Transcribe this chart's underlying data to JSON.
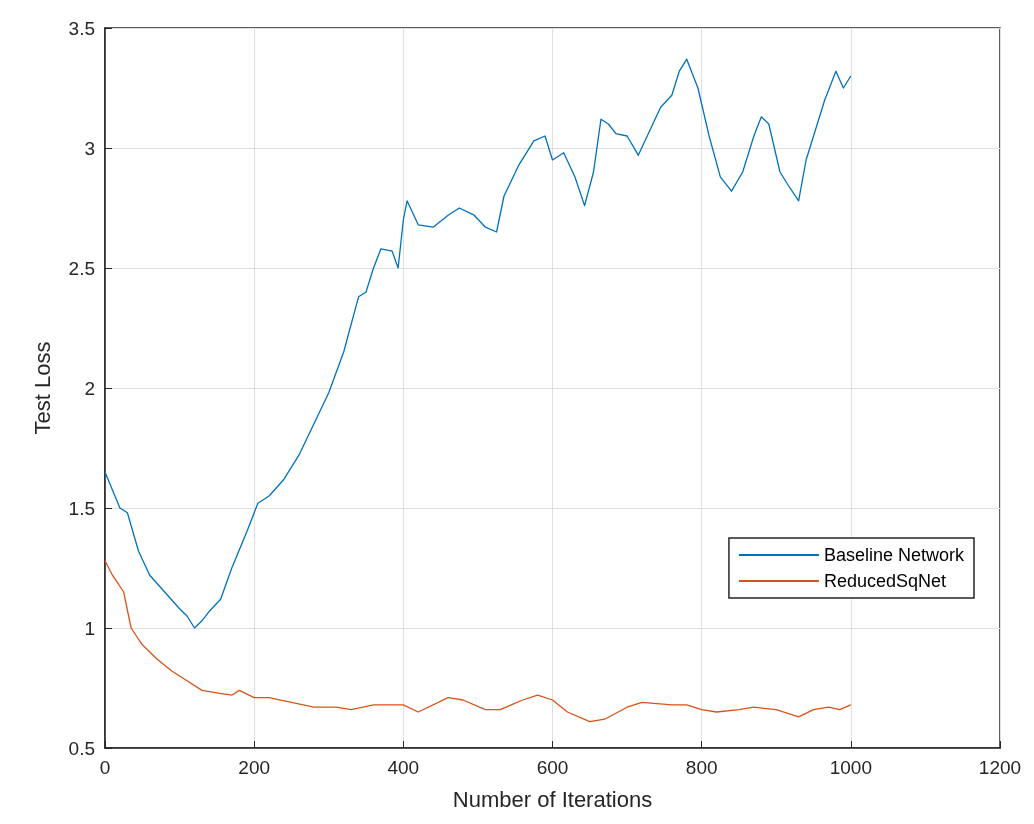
{
  "chart_data": {
    "type": "line",
    "xlabel": "Number of Iterations",
    "ylabel": "Test Loss",
    "xlim": [
      0,
      1200
    ],
    "xticks": [
      0,
      200,
      400,
      600,
      800,
      1000,
      1200
    ],
    "ylim": [
      0.5,
      3.5
    ],
    "yticks": [
      0.5,
      1,
      1.5,
      2,
      2.5,
      3,
      3.5
    ],
    "grid": true,
    "legend": "right",
    "line_style": "solid",
    "marker": "none",
    "series": [
      {
        "name": "Baseline Network",
        "color": "#0072bd",
        "x": [
          0,
          20,
          30,
          45,
          60,
          80,
          100,
          110,
          120,
          130,
          140,
          155,
          170,
          190,
          205,
          220,
          240,
          260,
          280,
          300,
          320,
          340,
          350,
          360,
          370,
          385,
          393,
          400,
          405,
          420,
          440,
          460,
          475,
          495,
          510,
          525,
          535,
          555,
          575,
          590,
          600,
          615,
          630,
          643,
          655,
          665,
          675,
          685,
          700,
          715,
          730,
          745,
          760,
          770,
          780,
          795,
          810,
          825,
          840,
          855,
          870,
          880,
          890,
          905,
          915,
          930,
          940,
          950,
          965,
          980,
          990,
          1000
        ],
        "values": [
          1.65,
          1.5,
          1.48,
          1.32,
          1.22,
          1.15,
          1.08,
          1.05,
          1.0,
          1.03,
          1.07,
          1.12,
          1.25,
          1.4,
          1.52,
          1.55,
          1.62,
          1.72,
          1.85,
          1.98,
          2.15,
          2.38,
          2.4,
          2.5,
          2.58,
          2.57,
          2.5,
          2.7,
          2.78,
          2.68,
          2.67,
          2.72,
          2.75,
          2.72,
          2.67,
          2.65,
          2.8,
          2.93,
          3.03,
          3.05,
          2.95,
          2.98,
          2.88,
          2.76,
          2.9,
          3.12,
          3.1,
          3.06,
          3.05,
          2.97,
          3.07,
          3.17,
          3.22,
          3.32,
          3.37,
          3.25,
          3.05,
          2.88,
          2.82,
          2.9,
          3.05,
          3.13,
          3.1,
          2.9,
          2.85,
          2.78,
          2.95,
          3.05,
          3.2,
          3.32,
          3.25,
          3.3
        ]
      },
      {
        "name": "ReducedSqNet",
        "color": "#d95319",
        "x": [
          0,
          10,
          25,
          35,
          50,
          70,
          90,
          110,
          130,
          150,
          170,
          180,
          200,
          220,
          250,
          280,
          310,
          330,
          360,
          400,
          420,
          460,
          480,
          510,
          530,
          560,
          580,
          600,
          620,
          650,
          670,
          700,
          720,
          760,
          780,
          800,
          820,
          850,
          870,
          900,
          930,
          950,
          970,
          985,
          1000
        ],
        "values": [
          1.28,
          1.22,
          1.15,
          1.0,
          0.93,
          0.87,
          0.82,
          0.78,
          0.74,
          0.73,
          0.72,
          0.74,
          0.71,
          0.71,
          0.69,
          0.67,
          0.67,
          0.66,
          0.68,
          0.68,
          0.65,
          0.71,
          0.7,
          0.66,
          0.66,
          0.7,
          0.72,
          0.7,
          0.65,
          0.61,
          0.62,
          0.67,
          0.69,
          0.68,
          0.68,
          0.66,
          0.65,
          0.66,
          0.67,
          0.66,
          0.63,
          0.66,
          0.67,
          0.66,
          0.68
        ]
      }
    ]
  }
}
